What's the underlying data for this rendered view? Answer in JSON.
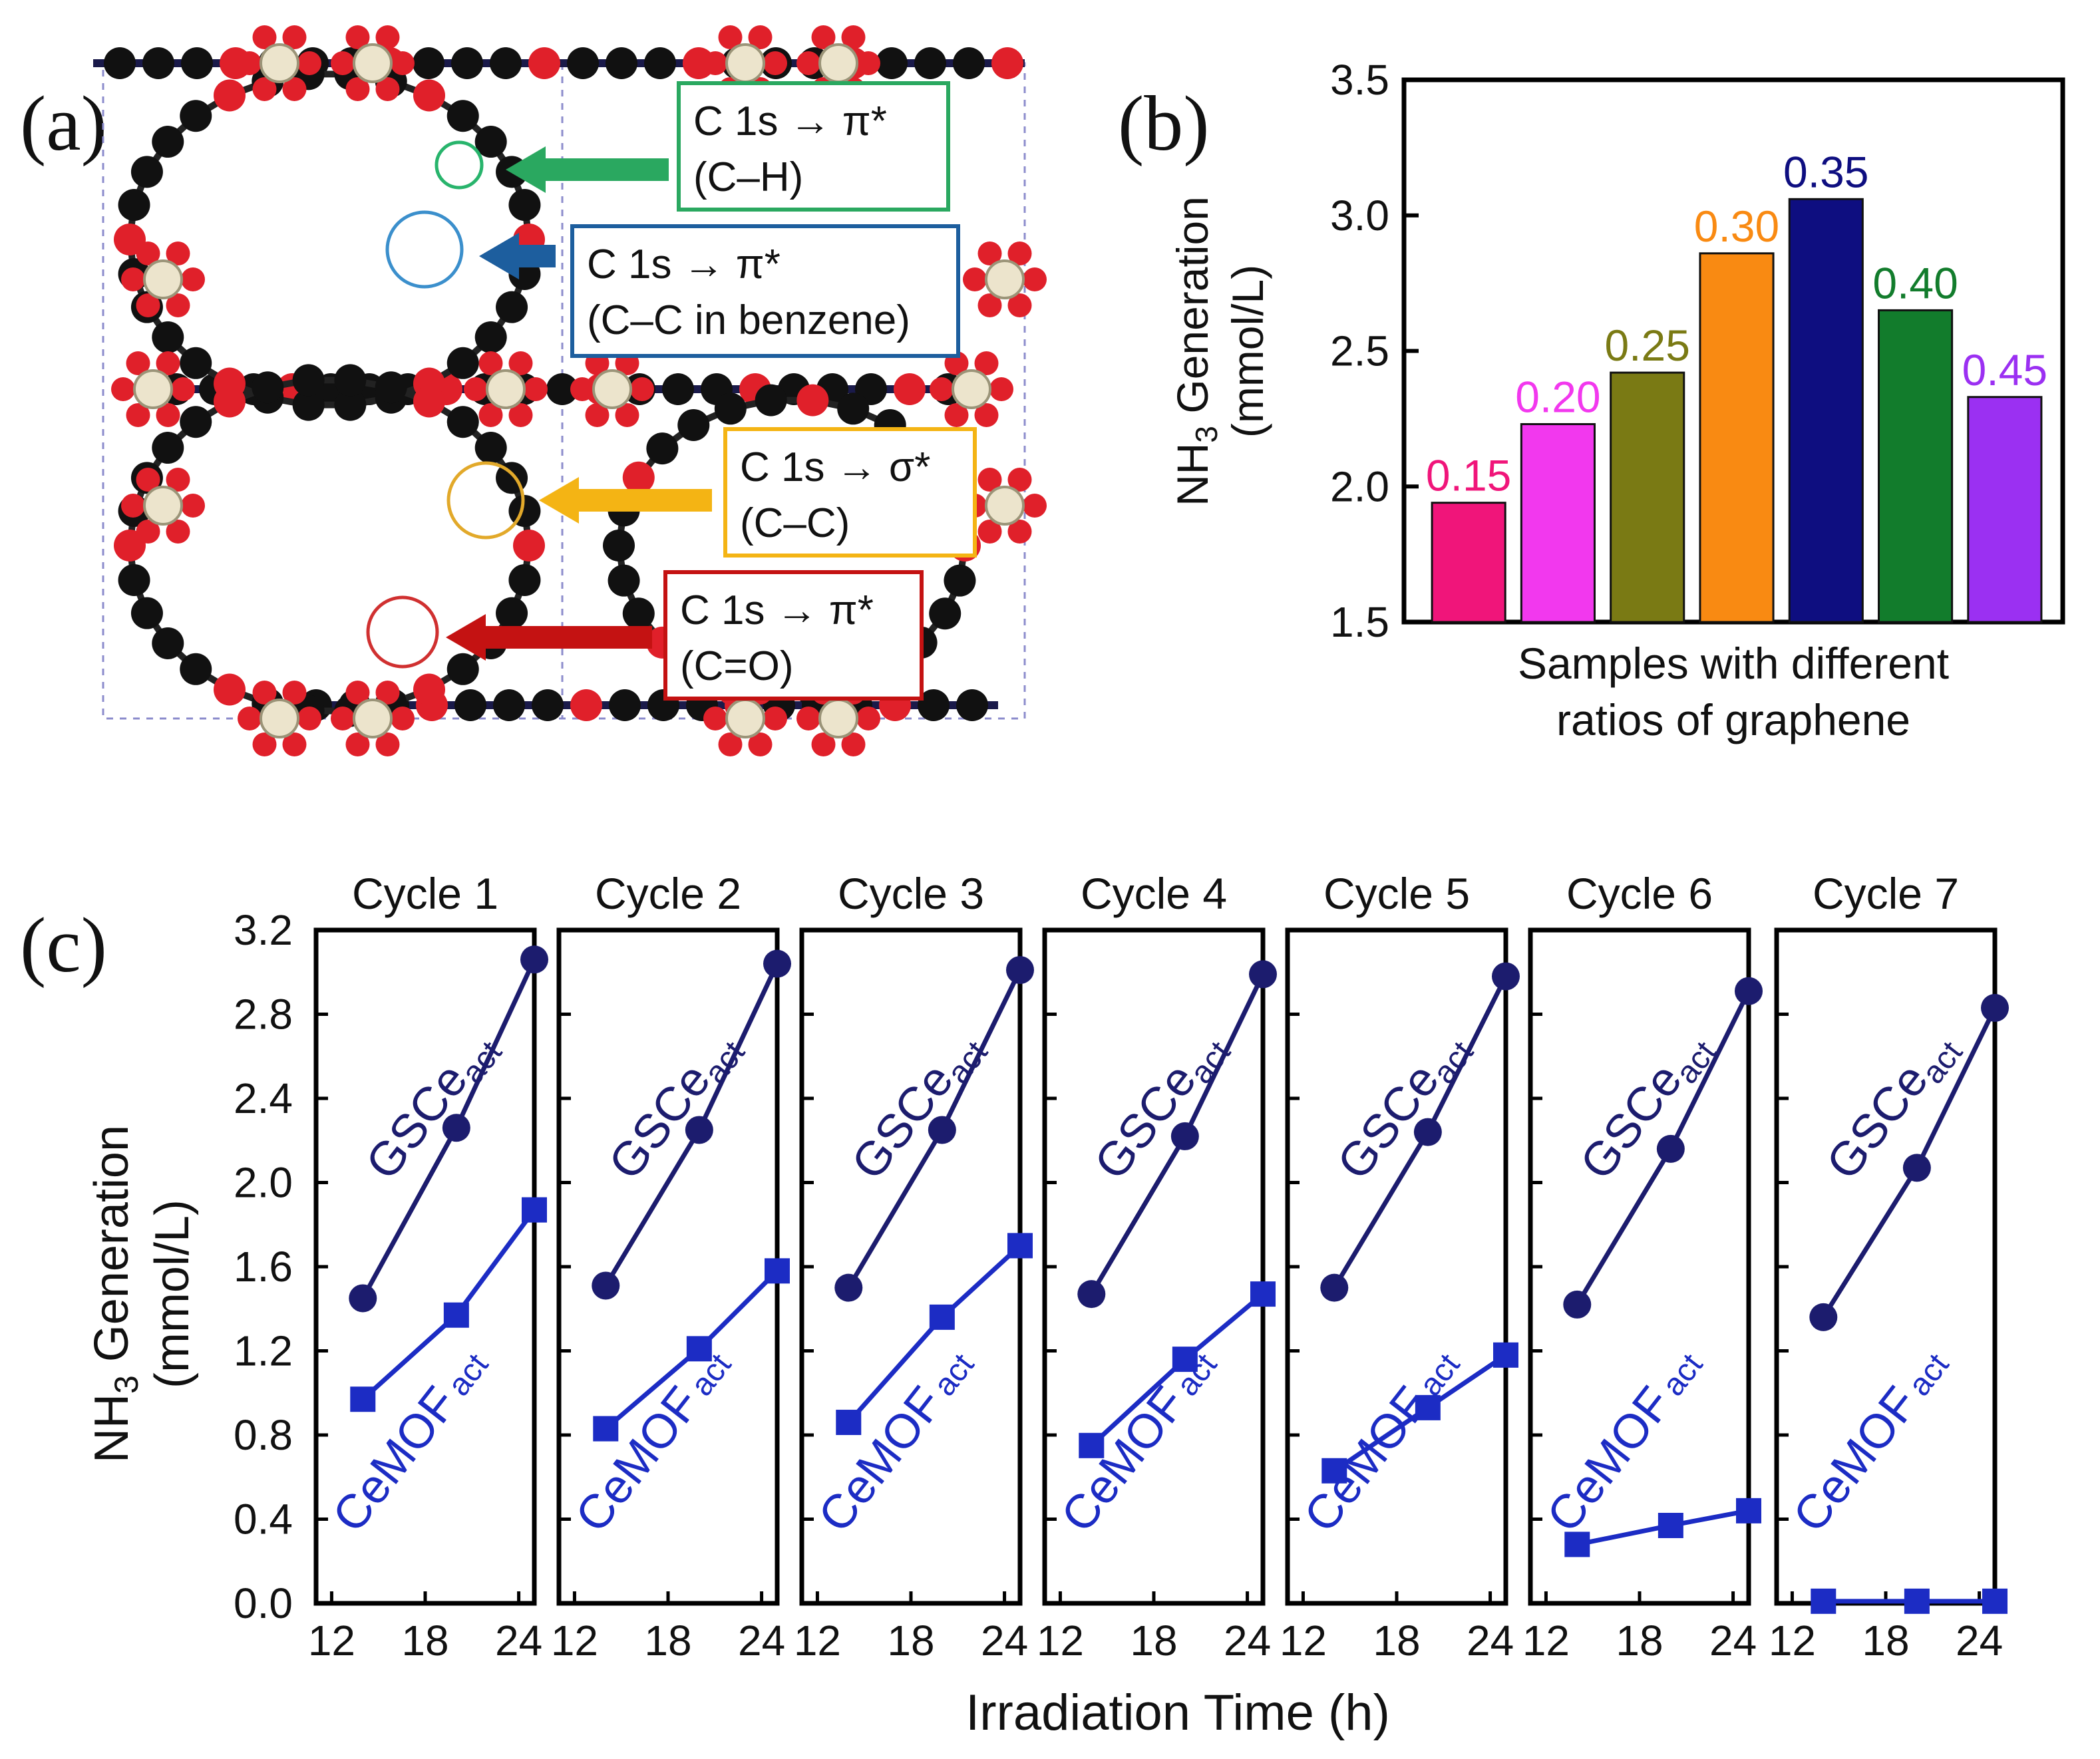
{
  "panel_labels": {
    "a": "(a)",
    "b": "(b)",
    "c": "(c)"
  },
  "molecule": {
    "colors": {
      "carbon": "#111111",
      "oxygen": "#e0202a",
      "cerium": "#ece4cc",
      "cell_line": "#8c8ccc"
    },
    "annotations": [
      {
        "line1": "C 1s → π*",
        "line2": "(C–H)",
        "color": "#2aa860",
        "circle": "#28b46c"
      },
      {
        "line1": "C 1s → π*",
        "line2": "(C–C in benzene)",
        "color": "#1d5e9e",
        "circle": "#3b8fcc"
      },
      {
        "line1": "C 1s → σ*",
        "line2": "(C–C)",
        "color": "#f4b414",
        "circle": "#e2a92a"
      },
      {
        "line1": "C 1s → π*",
        "line2": "(C=O)",
        "color": "#c41212",
        "circle": "#d03030"
      }
    ]
  },
  "chart_data": [
    {
      "type": "bar",
      "title": "",
      "ylabel_main": "NH",
      "ylabel_sub": "3",
      "ylabel_rest": " Generation",
      "ylabel_line2": "(mmol/L)",
      "xlabel_line1": "Samples with different",
      "xlabel_line2": "ratios of graphene",
      "ylim": [
        1.5,
        3.5
      ],
      "yticks": [
        "1.5",
        "2.0",
        "2.5",
        "3.0",
        "3.5"
      ],
      "categories": [
        "0.15",
        "0.20",
        "0.25",
        "0.30",
        "0.35",
        "0.40",
        "0.45"
      ],
      "values": [
        1.94,
        2.23,
        2.42,
        2.86,
        3.06,
        2.65,
        2.33
      ],
      "colors": [
        "#f0157a",
        "#f238ee",
        "#7a7a14",
        "#f98a12",
        "#0e0e80",
        "#127c2c",
        "#9b30f2"
      ]
    },
    {
      "type": "line",
      "ylabel_main": "NH",
      "ylabel_sub": "3",
      "ylabel_rest": " Generation",
      "ylabel_line2": "(mmol/L)",
      "xlabel": "Irradiation Time (h)",
      "ylim": [
        0.0,
        3.2
      ],
      "yticks": [
        "0.0",
        "0.4",
        "0.8",
        "1.2",
        "1.6",
        "2.0",
        "2.4",
        "2.8",
        "3.2"
      ],
      "xlim": [
        11,
        25
      ],
      "x": [
        14,
        20,
        25
      ],
      "xticks": [
        "12",
        "18",
        "24"
      ],
      "series_labels": {
        "gsce": {
          "main": "GSCe",
          "sub": "act"
        },
        "cemof": {
          "main": "CeMOF",
          "sub": "act"
        }
      },
      "colors": {
        "gsce": "#1c1c6e",
        "cemof": "#1c2cc4"
      },
      "cycles": [
        {
          "name": "Cycle 1",
          "gsce": [
            1.45,
            2.26,
            3.06
          ],
          "cemof": [
            0.97,
            1.37,
            1.87
          ]
        },
        {
          "name": "Cycle 2",
          "gsce": [
            1.51,
            2.25,
            3.04
          ],
          "cemof": [
            0.83,
            1.21,
            1.58
          ]
        },
        {
          "name": "Cycle 3",
          "gsce": [
            1.5,
            2.25,
            3.01
          ],
          "cemof": [
            0.86,
            1.36,
            1.7
          ]
        },
        {
          "name": "Cycle 4",
          "gsce": [
            1.47,
            2.22,
            2.99
          ],
          "cemof": [
            0.75,
            1.16,
            1.47
          ]
        },
        {
          "name": "Cycle 5",
          "gsce": [
            1.5,
            2.24,
            2.98
          ],
          "cemof": [
            0.63,
            0.93,
            1.18
          ]
        },
        {
          "name": "Cycle 6",
          "gsce": [
            1.42,
            2.16,
            2.91
          ],
          "cemof": [
            0.28,
            0.37,
            0.44
          ]
        },
        {
          "name": "Cycle 7",
          "gsce": [
            1.36,
            2.07,
            2.83
          ],
          "cemof": [
            0.01,
            0.01,
            0.01
          ]
        }
      ]
    }
  ]
}
